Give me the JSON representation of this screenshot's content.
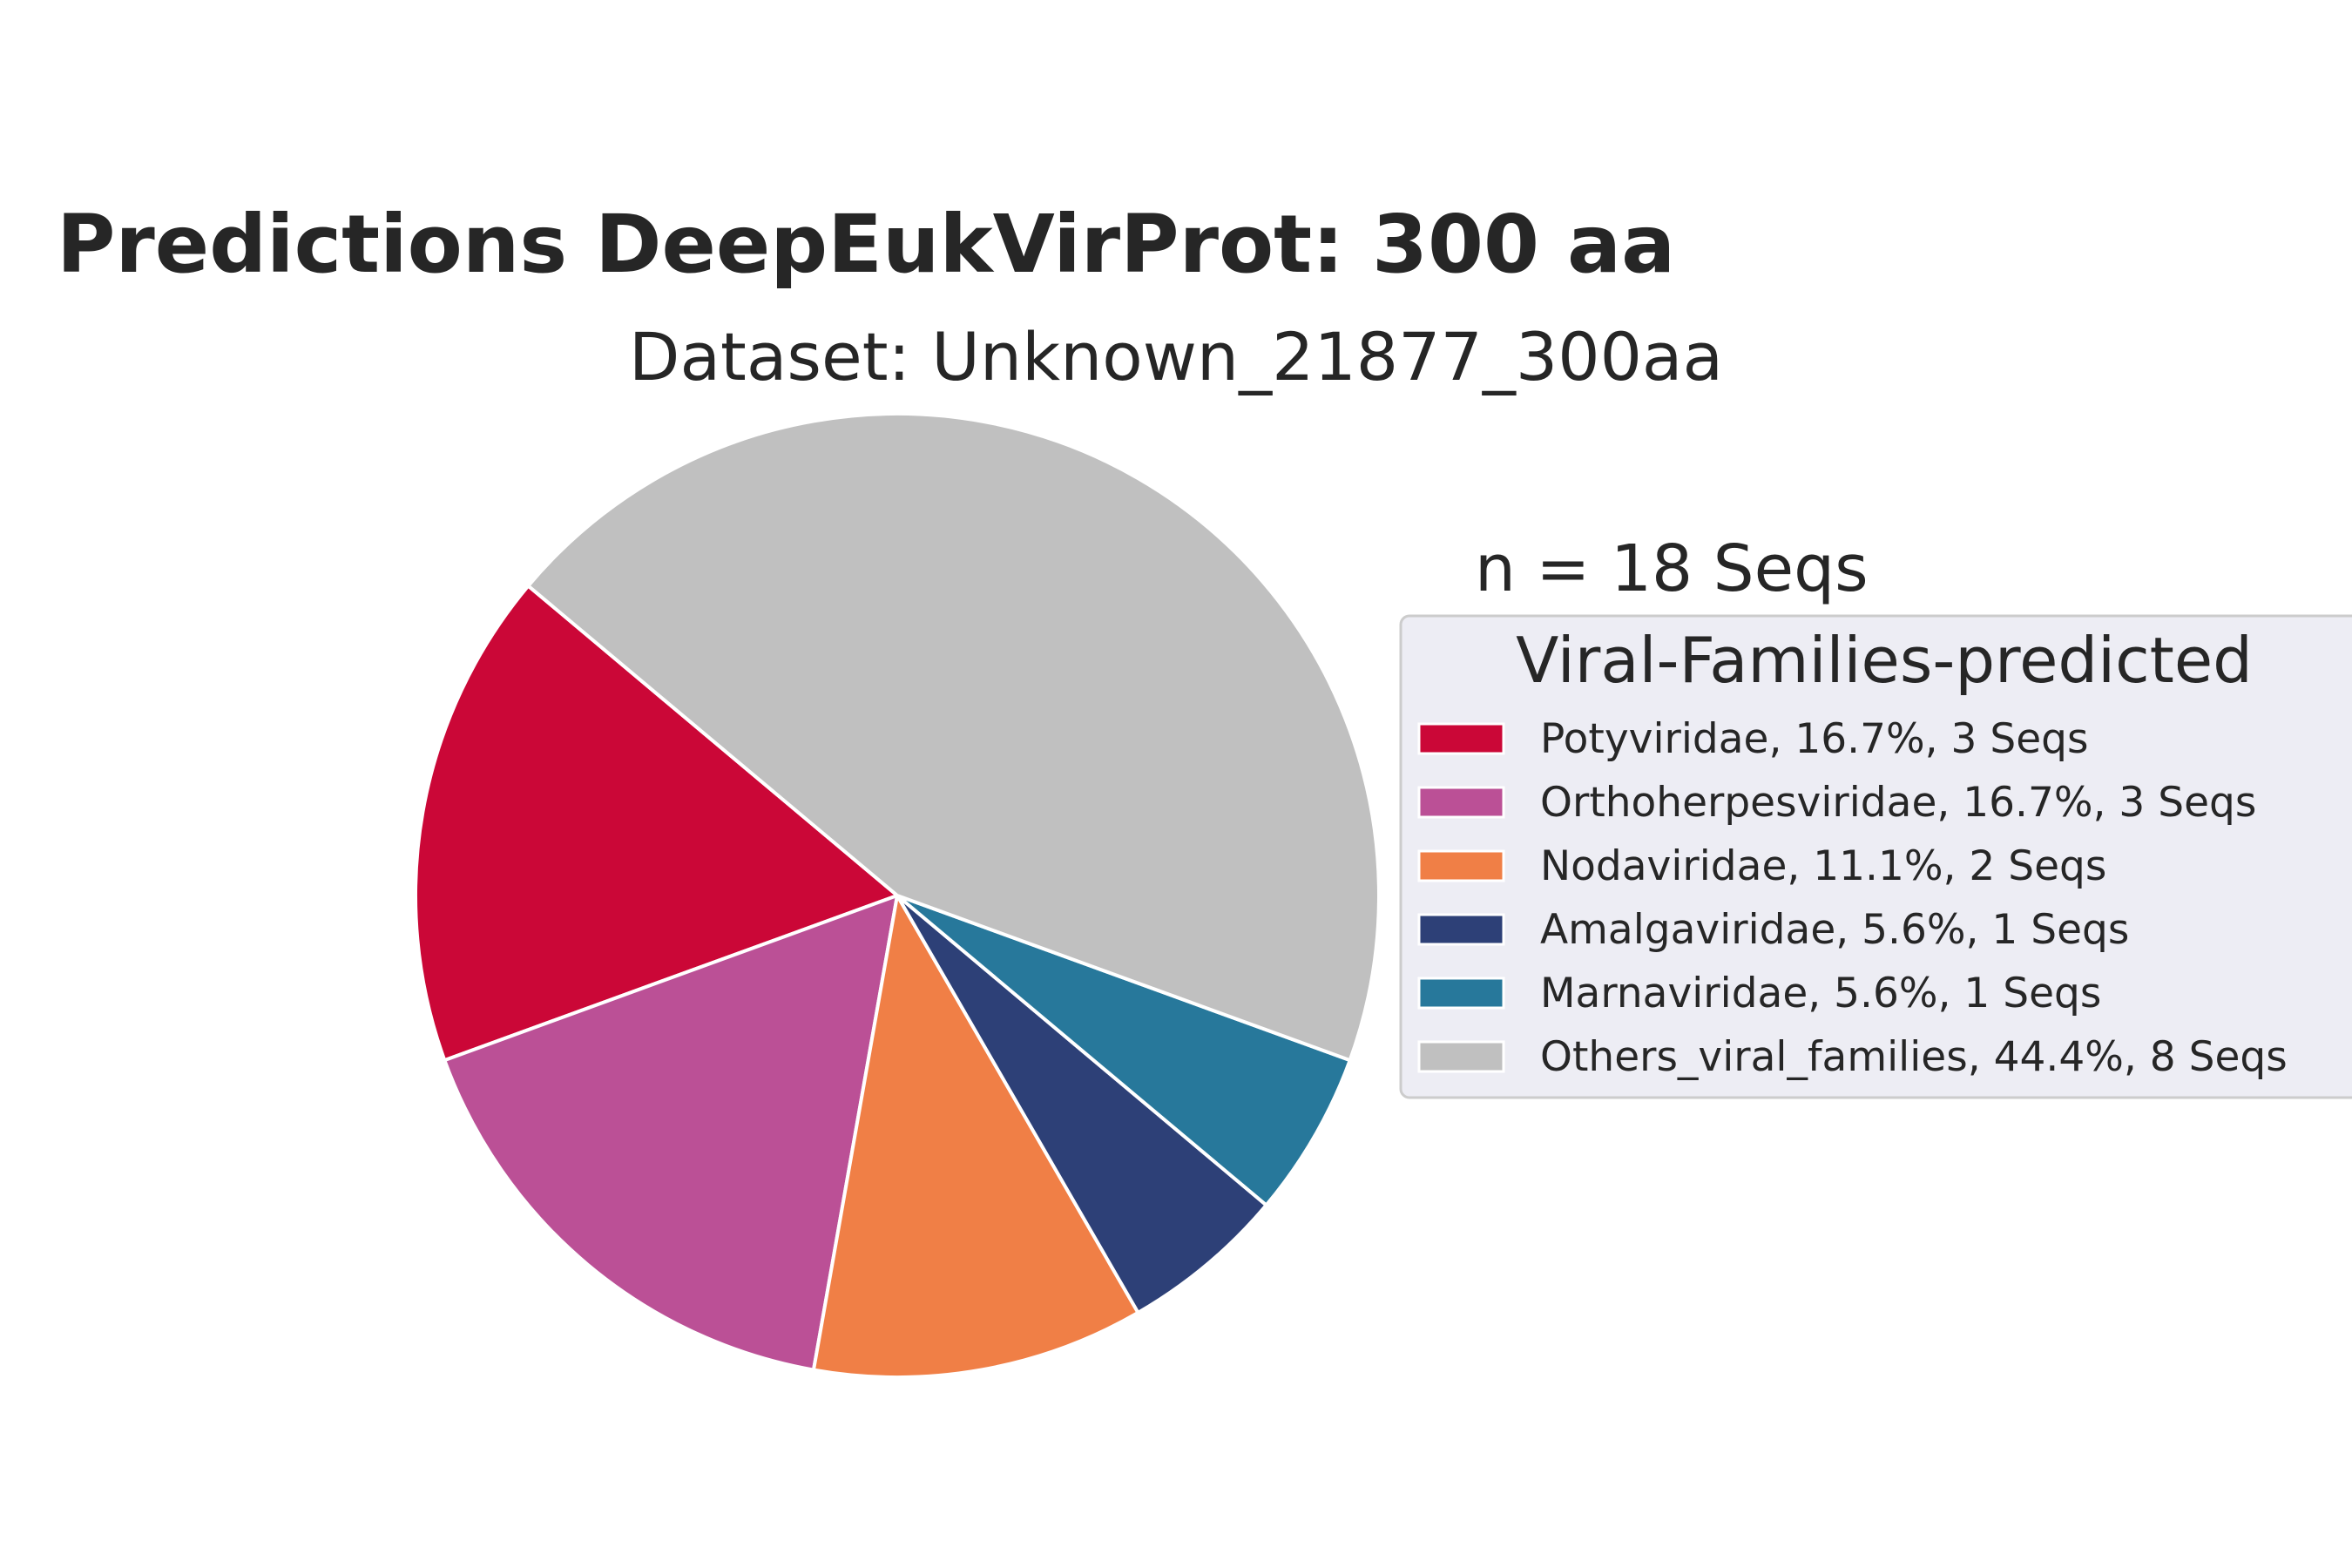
{
  "chart_data": {
    "type": "pie",
    "title": "Predictions DeepEukVirProt: 300 aa",
    "subtitle": "Dataset: Unknown_21877_300aa",
    "total_label": "n = 18 Seqs",
    "legend_title": "Viral-Families-predicted",
    "legend_position": "right",
    "slices": [
      {
        "label": "Potyviridae, 16.7%, 3 Seqs",
        "value": 3,
        "color": "#cb0737"
      },
      {
        "label": "Orthoherpesviridae, 16.7%, 3 Seqs",
        "value": 3,
        "color": "#bb5096"
      },
      {
        "label": "Nodaviridae, 11.1%, 2 Seqs",
        "value": 2,
        "color": "#f07f46"
      },
      {
        "label": "Amalgaviridae, 5.6%, 1 Seqs",
        "value": 1,
        "color": "#2d4077"
      },
      {
        "label": "Marnaviridae, 5.6%, 1 Seqs",
        "value": 1,
        "color": "#27789b"
      },
      {
        "label": "Others_viral_families, 44.4%, 8 Seqs",
        "value": 8,
        "color": "#c0c0c0"
      }
    ]
  }
}
